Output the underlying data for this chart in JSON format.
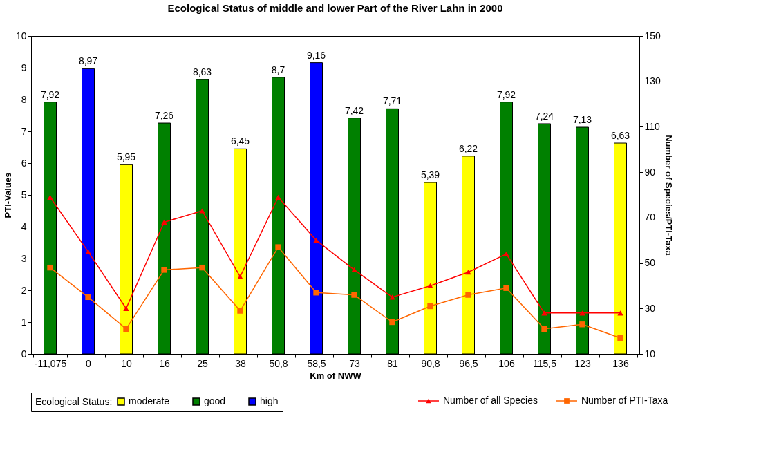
{
  "chart_data": {
    "type": "bar",
    "title": "Ecological Status of middle and lower Part of the River Lahn in 2000",
    "xlabel": "Km of NWW",
    "ylabel": "PTI-Values",
    "y2label": "Number of Species/PTI-Taxa",
    "legend_title": "Ecological Status:",
    "categories": [
      "-11,075",
      "0",
      "10",
      "16",
      "25",
      "38",
      "50,8",
      "58,5",
      "73",
      "81",
      "90,8",
      "96,5",
      "106",
      "115,5",
      "123",
      "136"
    ],
    "series": [
      {
        "name": "moderate",
        "color": "#ffff00",
        "values": [
          null,
          null,
          5.95,
          null,
          null,
          6.45,
          null,
          null,
          null,
          null,
          5.39,
          6.22,
          null,
          null,
          null,
          6.63
        ],
        "value_labels": [
          null,
          null,
          "5,95",
          null,
          null,
          "6,45",
          null,
          null,
          null,
          null,
          "5,39",
          "6,22",
          null,
          null,
          null,
          "6,63"
        ]
      },
      {
        "name": "good",
        "color": "#008000",
        "values": [
          7.92,
          null,
          null,
          7.26,
          8.63,
          null,
          8.7,
          null,
          7.42,
          7.71,
          null,
          null,
          7.92,
          7.24,
          7.13,
          null
        ],
        "value_labels": [
          "7,92",
          null,
          null,
          "7,26",
          "8,63",
          null,
          "8,7",
          null,
          "7,42",
          "7,71",
          null,
          null,
          "7,92",
          "7,24",
          "7,13",
          null
        ]
      },
      {
        "name": "high",
        "color": "#0000ff",
        "values": [
          null,
          8.97,
          null,
          null,
          null,
          null,
          null,
          9.16,
          null,
          null,
          null,
          null,
          null,
          null,
          null,
          null
        ],
        "value_labels": [
          null,
          "8,97",
          null,
          null,
          null,
          null,
          null,
          "9,16",
          null,
          null,
          null,
          null,
          null,
          null,
          null,
          null
        ]
      },
      {
        "name": "Number of all Species",
        "type": "line",
        "axis": "y2",
        "marker": "triangle",
        "color": "#ff0000",
        "values": [
          79,
          55,
          30,
          68,
          73,
          44,
          79,
          60,
          47,
          35,
          40,
          46,
          54,
          28,
          28,
          28
        ]
      },
      {
        "name": "Number of PTI-Taxa",
        "type": "line",
        "axis": "y2",
        "marker": "square",
        "color": "#ff6600",
        "values": [
          48,
          35,
          21,
          47,
          48,
          29,
          57,
          37,
          36,
          24,
          31,
          36,
          39,
          21,
          23,
          17
        ]
      }
    ],
    "ylim": [
      0,
      10
    ],
    "yticks": [
      0,
      1,
      2,
      3,
      4,
      5,
      6,
      7,
      8,
      9,
      10
    ],
    "y2lim": [
      10,
      150
    ],
    "y2ticks": [
      10,
      30,
      50,
      70,
      90,
      110,
      130,
      150
    ],
    "grid": false,
    "legend": "bottom",
    "line_style": "solid"
  }
}
